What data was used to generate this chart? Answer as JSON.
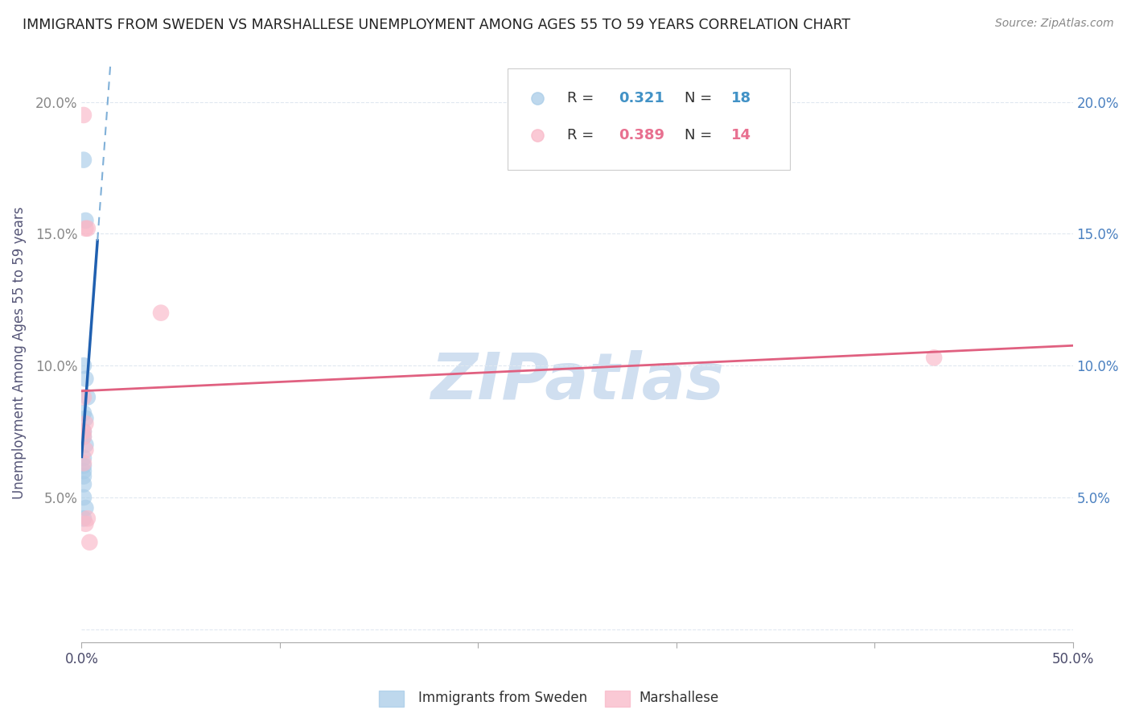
{
  "title": "IMMIGRANTS FROM SWEDEN VS MARSHALLESE UNEMPLOYMENT AMONG AGES 55 TO 59 YEARS CORRELATION CHART",
  "source": "Source: ZipAtlas.com",
  "ylabel": "Unemployment Among Ages 55 to 59 years",
  "xlim": [
    0.0,
    0.5
  ],
  "ylim": [
    -0.005,
    0.215
  ],
  "yticks": [
    0.0,
    0.05,
    0.1,
    0.15,
    0.2
  ],
  "yticklabels_left": [
    "",
    "5.0%",
    "10.0%",
    "15.0%",
    "20.0%"
  ],
  "yticklabels_right": [
    "",
    "5.0%",
    "10.0%",
    "15.0%",
    "20.0%"
  ],
  "legend_r1": "0.321",
  "legend_n1": "18",
  "legend_r2": "0.389",
  "legend_n2": "14",
  "blue_color": "#a8cce8",
  "pink_color": "#f9b8c8",
  "blue_line_solid_color": "#2060b0",
  "blue_line_dash_color": "#80b0d8",
  "pink_line_color": "#e06080",
  "watermark": "ZIPatlas",
  "watermark_color": "#d0dff0",
  "sweden_x": [
    0.001,
    0.002,
    0.001,
    0.002,
    0.003,
    0.001,
    0.002,
    0.001,
    0.001,
    0.002,
    0.001,
    0.001,
    0.001,
    0.001,
    0.001,
    0.001,
    0.002,
    0.001
  ],
  "sweden_y": [
    0.178,
    0.155,
    0.1,
    0.095,
    0.088,
    0.082,
    0.08,
    0.075,
    0.073,
    0.07,
    0.065,
    0.062,
    0.06,
    0.058,
    0.055,
    0.05,
    0.046,
    0.042
  ],
  "marsh_x": [
    0.001,
    0.002,
    0.003,
    0.001,
    0.002,
    0.001,
    0.001,
    0.002,
    0.001,
    0.003,
    0.04,
    0.43,
    0.002,
    0.004
  ],
  "marsh_y": [
    0.195,
    0.152,
    0.152,
    0.088,
    0.078,
    0.075,
    0.073,
    0.068,
    0.063,
    0.042,
    0.12,
    0.103,
    0.04,
    0.033
  ],
  "background_color": "#ffffff",
  "grid_color": "#e0e8f0"
}
